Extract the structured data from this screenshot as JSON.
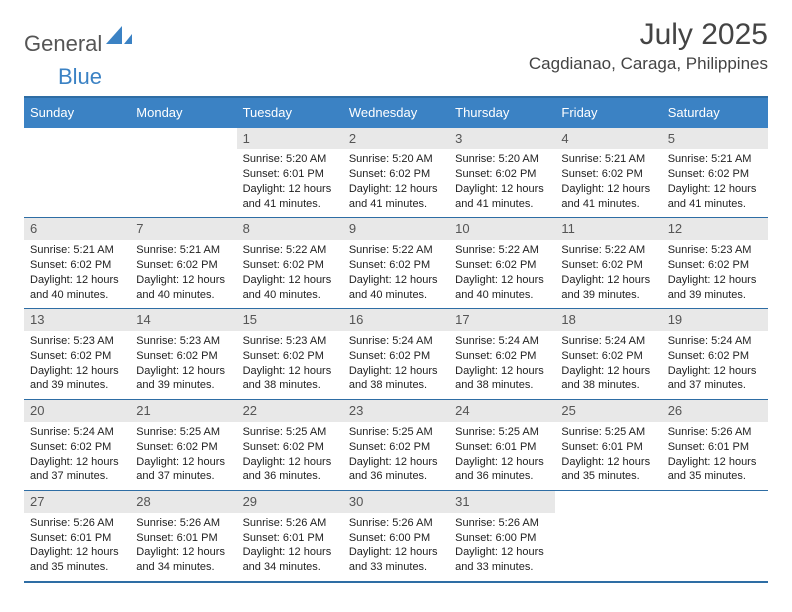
{
  "logo": {
    "text1": "General",
    "text2": "Blue"
  },
  "title": "July 2025",
  "location": "Cagdianao, Caraga, Philippines",
  "colors": {
    "header_bg": "#3b82c4",
    "daynum_bg": "#e8e8e8",
    "border": "#2e6da4",
    "text_muted": "#555555"
  },
  "weekdays": [
    "Sunday",
    "Monday",
    "Tuesday",
    "Wednesday",
    "Thursday",
    "Friday",
    "Saturday"
  ],
  "weeks": [
    [
      null,
      null,
      {
        "n": "1",
        "sunrise": "5:20 AM",
        "sunset": "6:01 PM",
        "daylight": "12 hours and 41 minutes."
      },
      {
        "n": "2",
        "sunrise": "5:20 AM",
        "sunset": "6:02 PM",
        "daylight": "12 hours and 41 minutes."
      },
      {
        "n": "3",
        "sunrise": "5:20 AM",
        "sunset": "6:02 PM",
        "daylight": "12 hours and 41 minutes."
      },
      {
        "n": "4",
        "sunrise": "5:21 AM",
        "sunset": "6:02 PM",
        "daylight": "12 hours and 41 minutes."
      },
      {
        "n": "5",
        "sunrise": "5:21 AM",
        "sunset": "6:02 PM",
        "daylight": "12 hours and 41 minutes."
      }
    ],
    [
      {
        "n": "6",
        "sunrise": "5:21 AM",
        "sunset": "6:02 PM",
        "daylight": "12 hours and 40 minutes."
      },
      {
        "n": "7",
        "sunrise": "5:21 AM",
        "sunset": "6:02 PM",
        "daylight": "12 hours and 40 minutes."
      },
      {
        "n": "8",
        "sunrise": "5:22 AM",
        "sunset": "6:02 PM",
        "daylight": "12 hours and 40 minutes."
      },
      {
        "n": "9",
        "sunrise": "5:22 AM",
        "sunset": "6:02 PM",
        "daylight": "12 hours and 40 minutes."
      },
      {
        "n": "10",
        "sunrise": "5:22 AM",
        "sunset": "6:02 PM",
        "daylight": "12 hours and 40 minutes."
      },
      {
        "n": "11",
        "sunrise": "5:22 AM",
        "sunset": "6:02 PM",
        "daylight": "12 hours and 39 minutes."
      },
      {
        "n": "12",
        "sunrise": "5:23 AM",
        "sunset": "6:02 PM",
        "daylight": "12 hours and 39 minutes."
      }
    ],
    [
      {
        "n": "13",
        "sunrise": "5:23 AM",
        "sunset": "6:02 PM",
        "daylight": "12 hours and 39 minutes."
      },
      {
        "n": "14",
        "sunrise": "5:23 AM",
        "sunset": "6:02 PM",
        "daylight": "12 hours and 39 minutes."
      },
      {
        "n": "15",
        "sunrise": "5:23 AM",
        "sunset": "6:02 PM",
        "daylight": "12 hours and 38 minutes."
      },
      {
        "n": "16",
        "sunrise": "5:24 AM",
        "sunset": "6:02 PM",
        "daylight": "12 hours and 38 minutes."
      },
      {
        "n": "17",
        "sunrise": "5:24 AM",
        "sunset": "6:02 PM",
        "daylight": "12 hours and 38 minutes."
      },
      {
        "n": "18",
        "sunrise": "5:24 AM",
        "sunset": "6:02 PM",
        "daylight": "12 hours and 38 minutes."
      },
      {
        "n": "19",
        "sunrise": "5:24 AM",
        "sunset": "6:02 PM",
        "daylight": "12 hours and 37 minutes."
      }
    ],
    [
      {
        "n": "20",
        "sunrise": "5:24 AM",
        "sunset": "6:02 PM",
        "daylight": "12 hours and 37 minutes."
      },
      {
        "n": "21",
        "sunrise": "5:25 AM",
        "sunset": "6:02 PM",
        "daylight": "12 hours and 37 minutes."
      },
      {
        "n": "22",
        "sunrise": "5:25 AM",
        "sunset": "6:02 PM",
        "daylight": "12 hours and 36 minutes."
      },
      {
        "n": "23",
        "sunrise": "5:25 AM",
        "sunset": "6:02 PM",
        "daylight": "12 hours and 36 minutes."
      },
      {
        "n": "24",
        "sunrise": "5:25 AM",
        "sunset": "6:01 PM",
        "daylight": "12 hours and 36 minutes."
      },
      {
        "n": "25",
        "sunrise": "5:25 AM",
        "sunset": "6:01 PM",
        "daylight": "12 hours and 35 minutes."
      },
      {
        "n": "26",
        "sunrise": "5:26 AM",
        "sunset": "6:01 PM",
        "daylight": "12 hours and 35 minutes."
      }
    ],
    [
      {
        "n": "27",
        "sunrise": "5:26 AM",
        "sunset": "6:01 PM",
        "daylight": "12 hours and 35 minutes."
      },
      {
        "n": "28",
        "sunrise": "5:26 AM",
        "sunset": "6:01 PM",
        "daylight": "12 hours and 34 minutes."
      },
      {
        "n": "29",
        "sunrise": "5:26 AM",
        "sunset": "6:01 PM",
        "daylight": "12 hours and 34 minutes."
      },
      {
        "n": "30",
        "sunrise": "5:26 AM",
        "sunset": "6:00 PM",
        "daylight": "12 hours and 33 minutes."
      },
      {
        "n": "31",
        "sunrise": "5:26 AM",
        "sunset": "6:00 PM",
        "daylight": "12 hours and 33 minutes."
      },
      null,
      null
    ]
  ],
  "labels": {
    "sunrise": "Sunrise:",
    "sunset": "Sunset:",
    "daylight": "Daylight:"
  }
}
